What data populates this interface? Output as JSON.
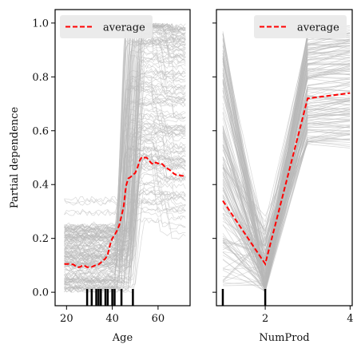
{
  "chart_data": [
    {
      "type": "line",
      "panel": "left",
      "xlabel": "Age",
      "ylabel": "Partial dependence",
      "xlim": [
        15,
        74
      ],
      "ylim": [
        -0.05,
        1.05
      ],
      "xticks": [
        20,
        40,
        60
      ],
      "yticks": [
        0.0,
        0.2,
        0.4,
        0.6,
        0.8,
        1.0
      ],
      "legend": {
        "position": "top-left",
        "entries": [
          "average"
        ]
      },
      "average": {
        "name": "average",
        "color": "#ff0000",
        "style": "dashed",
        "x": [
          19,
          21,
          22,
          23,
          24,
          25,
          26,
          27,
          28,
          29,
          30,
          31,
          32,
          33,
          34,
          35,
          36,
          37,
          38,
          39,
          40,
          41,
          42,
          43,
          44,
          45,
          46,
          47,
          48,
          49,
          50,
          51,
          52,
          53,
          54,
          55,
          56,
          57,
          58,
          59,
          60,
          61,
          62,
          63,
          64,
          65,
          66,
          67,
          68,
          69,
          70,
          71,
          72
        ],
        "y": [
          0.105,
          0.105,
          0.104,
          0.103,
          0.097,
          0.093,
          0.094,
          0.1,
          0.098,
          0.093,
          0.094,
          0.094,
          0.098,
          0.102,
          0.103,
          0.11,
          0.118,
          0.125,
          0.14,
          0.175,
          0.2,
          0.212,
          0.228,
          0.248,
          0.283,
          0.32,
          0.395,
          0.423,
          0.428,
          0.436,
          0.443,
          0.463,
          0.49,
          0.503,
          0.5,
          0.5,
          0.49,
          0.48,
          0.475,
          0.482,
          0.478,
          0.48,
          0.475,
          0.466,
          0.46,
          0.455,
          0.448,
          0.44,
          0.436,
          0.436,
          0.433,
          0.432,
          0.428
        ]
      },
      "rug": [
        29,
        31,
        33,
        34,
        35,
        37,
        38,
        40,
        41,
        44,
        49
      ]
    },
    {
      "type": "line",
      "panel": "right",
      "xlabel": "NumProd",
      "ylabel": "",
      "xlim": [
        0.85,
        4.05
      ],
      "ylim": [
        -0.05,
        1.05
      ],
      "xticks": [
        2,
        4
      ],
      "yticks": [
        0.0,
        0.2,
        0.4,
        0.6,
        0.8,
        1.0
      ],
      "legend": {
        "position": "top-right",
        "entries": [
          "average"
        ]
      },
      "average": {
        "name": "average",
        "color": "#ff0000",
        "style": "dashed",
        "x": [
          1,
          2,
          3,
          4
        ],
        "y": [
          0.34,
          0.105,
          0.72,
          0.74
        ]
      },
      "rug": [
        1,
        2
      ]
    }
  ]
}
